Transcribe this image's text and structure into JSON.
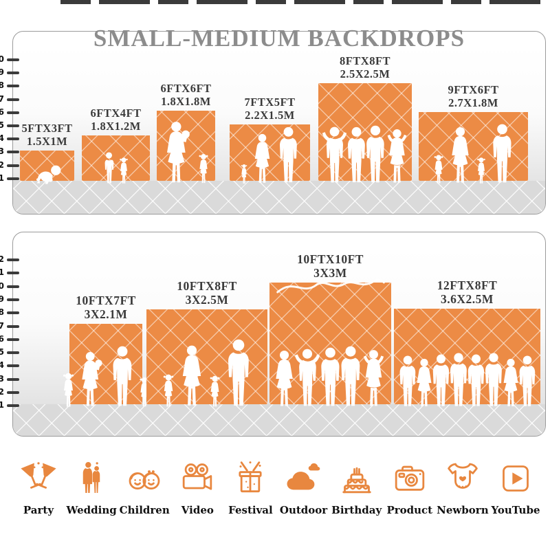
{
  "title": "SMALL-MEDIUM BACKDROPS",
  "colors": {
    "backdrop_orange": "#EC8B45",
    "icon_orange": "#E8873F",
    "title_gray": "#8C8C8C",
    "label_dark": "#3A3A3A",
    "floor_gray": "#DADADA",
    "silhouette_white": "#FFFFFF"
  },
  "panels": [
    {
      "name": "small-medium backdrops panel",
      "ruler": [
        "10",
        "9",
        "8",
        "7",
        "6",
        "5",
        "4",
        "3",
        "2",
        "1"
      ]
    },
    {
      "name": "medium-large backdrops panel",
      "ruler": [
        "12",
        "11",
        "10",
        "9",
        "8",
        "7",
        "6",
        "5",
        "4",
        "3",
        "2",
        "1"
      ]
    }
  ],
  "backdrops": [
    {
      "ft": "5FTX3FT",
      "m": "1.5X1M",
      "figures": [
        "baby"
      ]
    },
    {
      "ft": "6FTX4FT",
      "m": "1.8X1.2M",
      "figures": [
        "boy",
        "girl"
      ]
    },
    {
      "ft": "6FTX6FT",
      "m": "1.8X1.8M",
      "figures": [
        "woman-baby",
        "girl"
      ]
    },
    {
      "ft": "7FTX5FT",
      "m": "2.2X1.5M",
      "figures": [
        "girl",
        "woman",
        "man"
      ]
    },
    {
      "ft": "8FTX8FT",
      "m": "2.5X2.5M",
      "figures": [
        "man-up",
        "man",
        "man",
        "woman-up"
      ]
    },
    {
      "ft": "9FTX6FT",
      "m": "2.7X1.8M",
      "figures": [
        "girl",
        "woman",
        "girl",
        "man"
      ]
    },
    {
      "ft": "10FTX7FT",
      "m": "3X2.1M",
      "figures": [
        "girl",
        "woman-baby",
        "man",
        "girl"
      ]
    },
    {
      "ft": "10FTX8FT",
      "m": "3X2.5M",
      "figures": [
        "girl",
        "woman",
        "girl",
        "man"
      ]
    },
    {
      "ft": "10FTX10FT",
      "m": "3X3M",
      "figures": [
        "woman",
        "man-up",
        "man",
        "man",
        "woman-up"
      ]
    },
    {
      "ft": "12FTX8FT",
      "m": "3.6X2.5M",
      "figures": [
        "man",
        "woman",
        "man",
        "man",
        "man",
        "man",
        "woman",
        "man"
      ]
    }
  ],
  "categories": [
    {
      "label": "Party",
      "icon": "party-icon"
    },
    {
      "label": "Wedding",
      "icon": "wedding-icon"
    },
    {
      "label": "Children",
      "icon": "children-icon"
    },
    {
      "label": "Video",
      "icon": "video-icon"
    },
    {
      "label": "Festival",
      "icon": "festival-icon"
    },
    {
      "label": "Outdoor",
      "icon": "outdoor-icon"
    },
    {
      "label": "Birthday",
      "icon": "birthday-icon"
    },
    {
      "label": "Product",
      "icon": "product-icon"
    },
    {
      "label": "Newborn",
      "icon": "newborn-icon"
    },
    {
      "label": "YouTube",
      "icon": "youtube-icon"
    }
  ]
}
